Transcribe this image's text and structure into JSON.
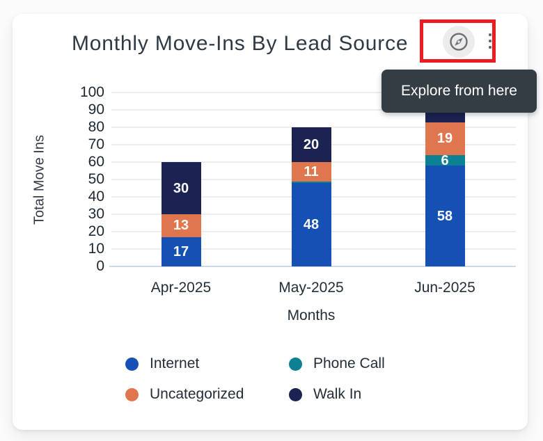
{
  "theme": {
    "card_bg": "#ffffff",
    "page_bg": "#fbfbfc",
    "highlight_red": "#ea1c22",
    "tooltip_bg": "#343c44",
    "icon_gray": "#5f6368"
  },
  "card": {
    "title": "Monthly Move-Ins By Lead Source"
  },
  "toolbar": {
    "icons": {
      "explore": "compass-explore-icon",
      "menu": "kebab-vertical-icon"
    },
    "explore_tooltip": "Explore from here"
  },
  "legend": {
    "items": [
      {
        "label": "Internet",
        "color": "#1551b4"
      },
      {
        "label": "Phone Call",
        "color": "#0d8194"
      },
      {
        "label": "Uncategorized",
        "color": "#e0764e"
      },
      {
        "label": "Walk In",
        "color": "#1a2352"
      }
    ]
  },
  "chart_data": {
    "type": "bar",
    "stacked": true,
    "title": "Monthly Move-Ins By Lead Source",
    "xlabel": "Months",
    "ylabel": "Total Move Ins",
    "ylim": [
      0,
      100
    ],
    "yticks": [
      0,
      10,
      20,
      30,
      40,
      50,
      60,
      70,
      80,
      90,
      100
    ],
    "grid": "horizontal",
    "legend_position": "bottom",
    "categories": [
      "Apr-2025",
      "May-2025",
      "Jun-2025"
    ],
    "series": [
      {
        "name": "Internet",
        "color": "#1551b4",
        "values": [
          17,
          48,
          58
        ]
      },
      {
        "name": "Phone Call",
        "color": "#0d8194",
        "values": [
          0,
          1,
          6
        ]
      },
      {
        "name": "Uncategorized",
        "color": "#e0764e",
        "values": [
          13,
          11,
          19
        ]
      },
      {
        "name": "Walk In",
        "color": "#1a2352",
        "values": [
          30,
          20,
          17
        ]
      }
    ],
    "totals": [
      60,
      80,
      100
    ],
    "annotations": {
      "jun_2025_walk_in_label_hidden_by_tooltip": true,
      "jun_2025_walk_in_estimated": true,
      "may_2025_phone_call_too_small_for_label": true
    }
  }
}
